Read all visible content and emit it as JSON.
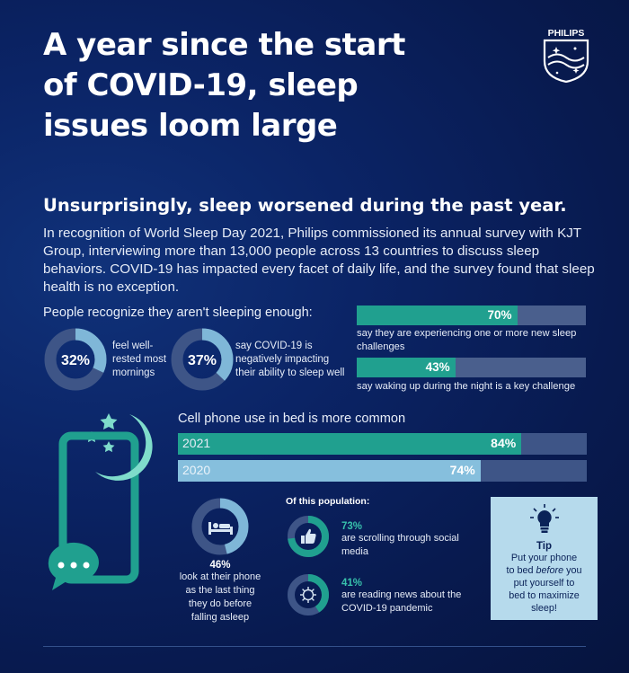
{
  "title": {
    "line1": "A year since the start",
    "line2": "of COVID-19, sleep",
    "line3": "issues loom large"
  },
  "logo": {
    "text": "PHILIPS"
  },
  "subtitle": "Unsurprisingly, sleep worsened during the past year.",
  "intro": "In recognition of World Sleep Day 2021, Philips commissioned its annual survey with KJT Group, interviewing more than 13,000 people across 13 countries to discuss sleep behaviors. COVID-19 has impacted every facet of daily life, and the survey found that sleep health is no exception.",
  "section1": {
    "heading": "People recognize they aren't sleeping enough:",
    "donuts": [
      {
        "pct": "32%",
        "value": 0.32,
        "line1": "feel well-",
        "line2": "rested most",
        "line3": "mornings"
      },
      {
        "pct": "37%",
        "value": 0.37,
        "line1": "say COVID-19 is",
        "line2": "negatively impacting",
        "line3": "their ability to sleep well"
      }
    ],
    "bars": [
      {
        "pct": "70%",
        "value": 0.7,
        "caption1": "say they are experiencing one or more new sleep",
        "caption2": "challenges"
      },
      {
        "pct": "43%",
        "value": 0.43,
        "caption1": "say waking up during the night is a key challenge",
        "caption2": ""
      }
    ]
  },
  "section2": {
    "heading": "Cell phone use in bed is more common",
    "bars": [
      {
        "label": "2021",
        "pct": "84%",
        "value": 0.84,
        "color": "#20a08f"
      },
      {
        "label": "2020",
        "pct": "74%",
        "value": 0.74,
        "color": "#86bfdd"
      }
    ],
    "donut": {
      "pct": "46%",
      "value": 0.46,
      "line1": "look at their phone",
      "line2": "as the last thing",
      "line3": "they do before",
      "line4": "falling asleep"
    },
    "population_heading": "Of this population:",
    "stats": [
      {
        "pct": "73%",
        "value": 0.73,
        "line1": "are scrolling through social",
        "line2": "media",
        "icon": "thumbs-up-icon"
      },
      {
        "pct": "41%",
        "value": 0.41,
        "line1": "are reading news about the",
        "line2": "COVID-19 pandemic",
        "icon": "virus-icon"
      }
    ],
    "tip": {
      "title": "Tip",
      "line1": "Put your phone",
      "line2a": "to bed ",
      "line2b": "before",
      "line2c": " you",
      "line3": "put yourself to",
      "line4": "bed to maximize",
      "line5": "sleep!",
      "icon": "lightbulb-icon"
    }
  },
  "colors": {
    "background": "#0b2466",
    "teal": "#20a08f",
    "light_blue": "#86bfdd",
    "track": "#4a5f8d",
    "tip_bg": "#b6daec"
  }
}
